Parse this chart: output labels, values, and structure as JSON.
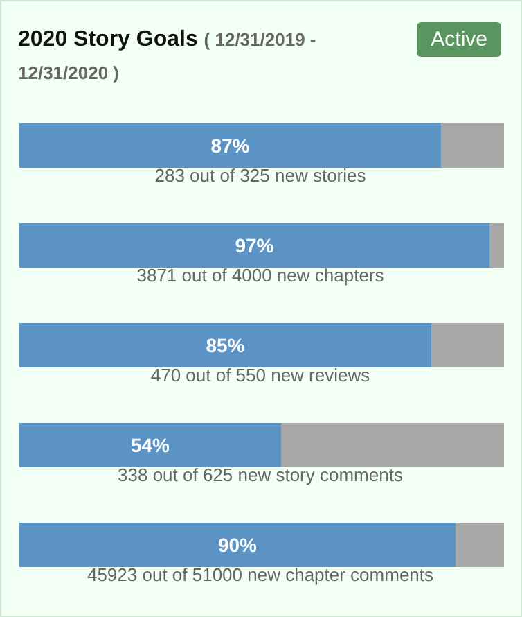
{
  "chart_data": {
    "type": "bar",
    "orientation": "horizontal",
    "stacked": true,
    "title": "2020 Story Goals",
    "subtitle": "( 12/31/2019 - 12/31/2020 )",
    "annotations": [
      "Active"
    ],
    "categories": [
      "283 out of 325 new stories",
      "3871 out of 4000 new chapters",
      "470 out of 550 new reviews",
      "338 out of 625 new story comments",
      "45923 out of 51000 new chapter comments"
    ],
    "xlim": [
      0,
      100
    ],
    "tick_labels": "y",
    "legend": false,
    "grid": false,
    "series": [
      {
        "color": "#5b93c5",
        "values": [
          87,
          97,
          85,
          54,
          90
        ],
        "value_labels": [
          "87%",
          "97%",
          "85%",
          "54%",
          "90%"
        ]
      },
      {
        "color": "#a8a8a8",
        "values": [
          13,
          3,
          15,
          46,
          10
        ]
      }
    ]
  }
}
